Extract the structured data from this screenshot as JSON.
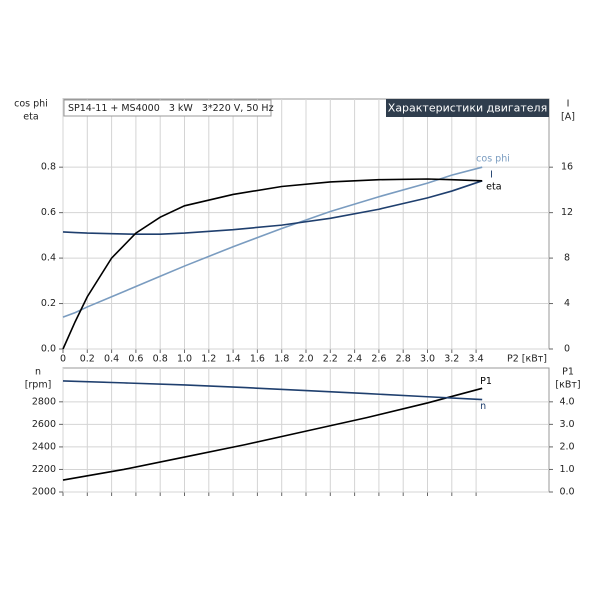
{
  "chart_data": [
    {
      "type": "line",
      "title": "SP14-11 + MS4000   3 kW   3*220 V, 50 Hz",
      "subtitle": "Характеристики двигателя",
      "ylabel_lines": [
        "cos phi",
        "eta"
      ],
      "y2label_lines": [
        "I",
        "[A]"
      ],
      "xlabel": "P2 [кВт]",
      "x": [
        0,
        0.1,
        0.2,
        0.4,
        0.6,
        0.8,
        1.0,
        1.4,
        1.8,
        2.2,
        2.6,
        3.0,
        3.2,
        3.45
      ],
      "series": [
        {
          "name": "cos phi",
          "color": "#7a9cc0",
          "values": [
            0.14,
            0.16,
            0.185,
            0.23,
            0.275,
            0.32,
            0.365,
            0.45,
            0.53,
            0.605,
            0.67,
            0.73,
            0.765,
            0.8
          ]
        },
        {
          "name": "I",
          "color": "#1f3f6e",
          "axis": "y2",
          "values": [
            10.3,
            10.25,
            10.2,
            10.15,
            10.1,
            10.1,
            10.2,
            10.5,
            10.9,
            11.5,
            12.3,
            13.3,
            13.9,
            14.8
          ]
        },
        {
          "name": "eta",
          "color": "#000000",
          "values": [
            0,
            0.12,
            0.23,
            0.4,
            0.51,
            0.58,
            0.63,
            0.68,
            0.715,
            0.735,
            0.745,
            0.748,
            0.745,
            0.74
          ]
        }
      ],
      "xlim": [
        0,
        4.0
      ],
      "xticks": [
        0,
        {
          "value": 0.2,
          "label": "0.2"
        },
        {
          "value": 0.4,
          "label": "0.4"
        },
        {
          "value": 0.6,
          "label": "0.6"
        },
        {
          "value": 0.8,
          "label": "0.8"
        },
        {
          "value": 1.0,
          "label": "1.0"
        },
        {
          "value": 1.2,
          "label": "1.2"
        },
        {
          "value": 1.4,
          "label": "1.4"
        },
        {
          "value": 1.6,
          "label": "1.6"
        },
        {
          "value": 1.8,
          "label": "1.8"
        },
        {
          "value": 2.0,
          "label": "2.0"
        },
        {
          "value": 2.2,
          "label": "2.2"
        },
        {
          "value": 2.4,
          "label": "2.4"
        },
        {
          "value": 2.6,
          "label": "2.6"
        },
        {
          "value": 2.8,
          "label": "2.8"
        },
        {
          "value": 3.0,
          "label": "3.0"
        },
        {
          "value": 3.2,
          "label": "3.2"
        },
        {
          "value": 3.4,
          "label": "3.4"
        }
      ],
      "ylim": [
        0,
        1.1
      ],
      "yticks": [
        {
          "value": 0,
          "label": "0.0"
        },
        0.2,
        0.4,
        0.6,
        0.8
      ],
      "y2lim": [
        0,
        22
      ],
      "y2ticks": [
        0,
        4,
        8,
        12,
        16
      ],
      "grid": true
    },
    {
      "type": "line",
      "ylabel_lines": [
        "n",
        "[rpm]"
      ],
      "y2label_lines": [
        "P1",
        "[кВт]"
      ],
      "x": [
        0,
        0.5,
        1.0,
        1.5,
        2.0,
        2.5,
        3.0,
        3.45
      ],
      "series": [
        {
          "name": "P1",
          "color": "#000000",
          "axis": "y2",
          "values": [
            0.53,
            1.0,
            1.55,
            2.1,
            2.7,
            3.3,
            3.95,
            4.6
          ]
        },
        {
          "name": "n",
          "color": "#1f3f6e",
          "values": [
            2985,
            2968,
            2950,
            2926,
            2900,
            2873,
            2845,
            2820
          ]
        }
      ],
      "xlim": [
        0,
        4.0
      ],
      "xticks": [
        0,
        0.2,
        0.4,
        0.6,
        0.8,
        1.0,
        1.2,
        1.4,
        1.6,
        1.8,
        2.0,
        2.2,
        2.4,
        2.6,
        2.8,
        3.0,
        3.2,
        3.4
      ],
      "ylim": [
        2000,
        3100
      ],
      "yticks": [
        2000,
        2200,
        2400,
        2600,
        2800
      ],
      "y2lim": [
        0,
        5.5
      ],
      "y2ticks": [
        {
          "value": 0,
          "label": "0.0"
        },
        {
          "value": 1,
          "label": "1.0"
        },
        {
          "value": 2,
          "label": "2.0"
        },
        {
          "value": 3,
          "label": "3.0"
        },
        {
          "value": 4,
          "label": "4.0"
        }
      ],
      "grid": true
    }
  ]
}
